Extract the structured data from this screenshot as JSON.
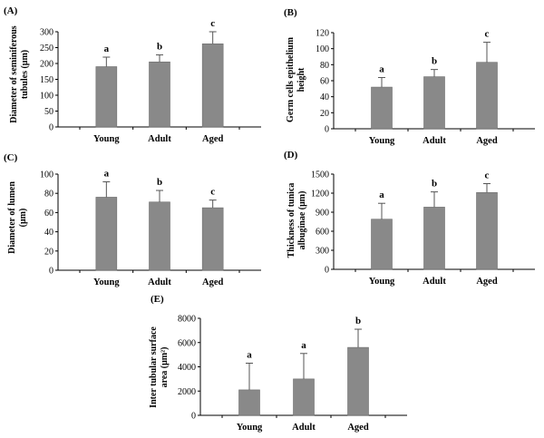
{
  "chart_data": [
    {
      "panel": "(A)",
      "type": "bar",
      "ylabel_lines": [
        "Diameter of seminiferous",
        "tubules (μm)"
      ],
      "categories": [
        "Young",
        "Adult",
        "Aged"
      ],
      "values": [
        190,
        205,
        262
      ],
      "errors": [
        30,
        22,
        38
      ],
      "significance": [
        "a",
        "b",
        "c"
      ],
      "ylim": [
        0,
        300
      ],
      "yticks": [
        0,
        50,
        100,
        150,
        200,
        250,
        300
      ],
      "bar_color": "#898989"
    },
    {
      "panel": "(B)",
      "type": "bar",
      "ylabel_lines": [
        "Germ cells epithelium",
        "height"
      ],
      "categories": [
        "Young",
        "Adult",
        "Aged"
      ],
      "values": [
        52,
        65,
        83
      ],
      "errors": [
        12,
        9,
        25
      ],
      "significance": [
        "a",
        "b",
        "c"
      ],
      "ylim": [
        0,
        120
      ],
      "yticks": [
        0,
        20,
        40,
        60,
        80,
        100,
        120
      ],
      "bar_color": "#898989"
    },
    {
      "panel": "(C)",
      "type": "bar",
      "ylabel_lines": [
        "Diameter of lumen",
        "(μm)"
      ],
      "categories": [
        "Young",
        "Adult",
        "Aged"
      ],
      "values": [
        76,
        71,
        65
      ],
      "errors": [
        16,
        12,
        8
      ],
      "significance": [
        "a",
        "b",
        "c"
      ],
      "ylim": [
        0,
        100
      ],
      "yticks": [
        0,
        20,
        40,
        60,
        80,
        100
      ],
      "bar_color": "#898989"
    },
    {
      "panel": "(D)",
      "type": "bar",
      "ylabel_lines": [
        "Thickness of tunica",
        "albuginae (μm)"
      ],
      "categories": [
        "Young",
        "Adult",
        "Aged"
      ],
      "values": [
        790,
        980,
        1210
      ],
      "errors": [
        250,
        240,
        140
      ],
      "significance": [
        "a",
        "b",
        "c"
      ],
      "ylim": [
        0,
        1500
      ],
      "yticks": [
        0,
        300,
        600,
        900,
        1200,
        1500
      ],
      "bar_color": "#898989"
    },
    {
      "panel": "(E)",
      "type": "bar",
      "ylabel_lines": [
        "Inter tubular surface",
        "area (μm²)"
      ],
      "categories": [
        "Young",
        "Adult",
        "Aged"
      ],
      "values": [
        2100,
        3000,
        5600
      ],
      "errors": [
        2200,
        2100,
        1500
      ],
      "significance": [
        "a",
        "a",
        "b"
      ],
      "ylim": [
        0,
        8000
      ],
      "yticks": [
        0,
        2000,
        4000,
        6000,
        8000
      ],
      "bar_color": "#898989"
    }
  ]
}
